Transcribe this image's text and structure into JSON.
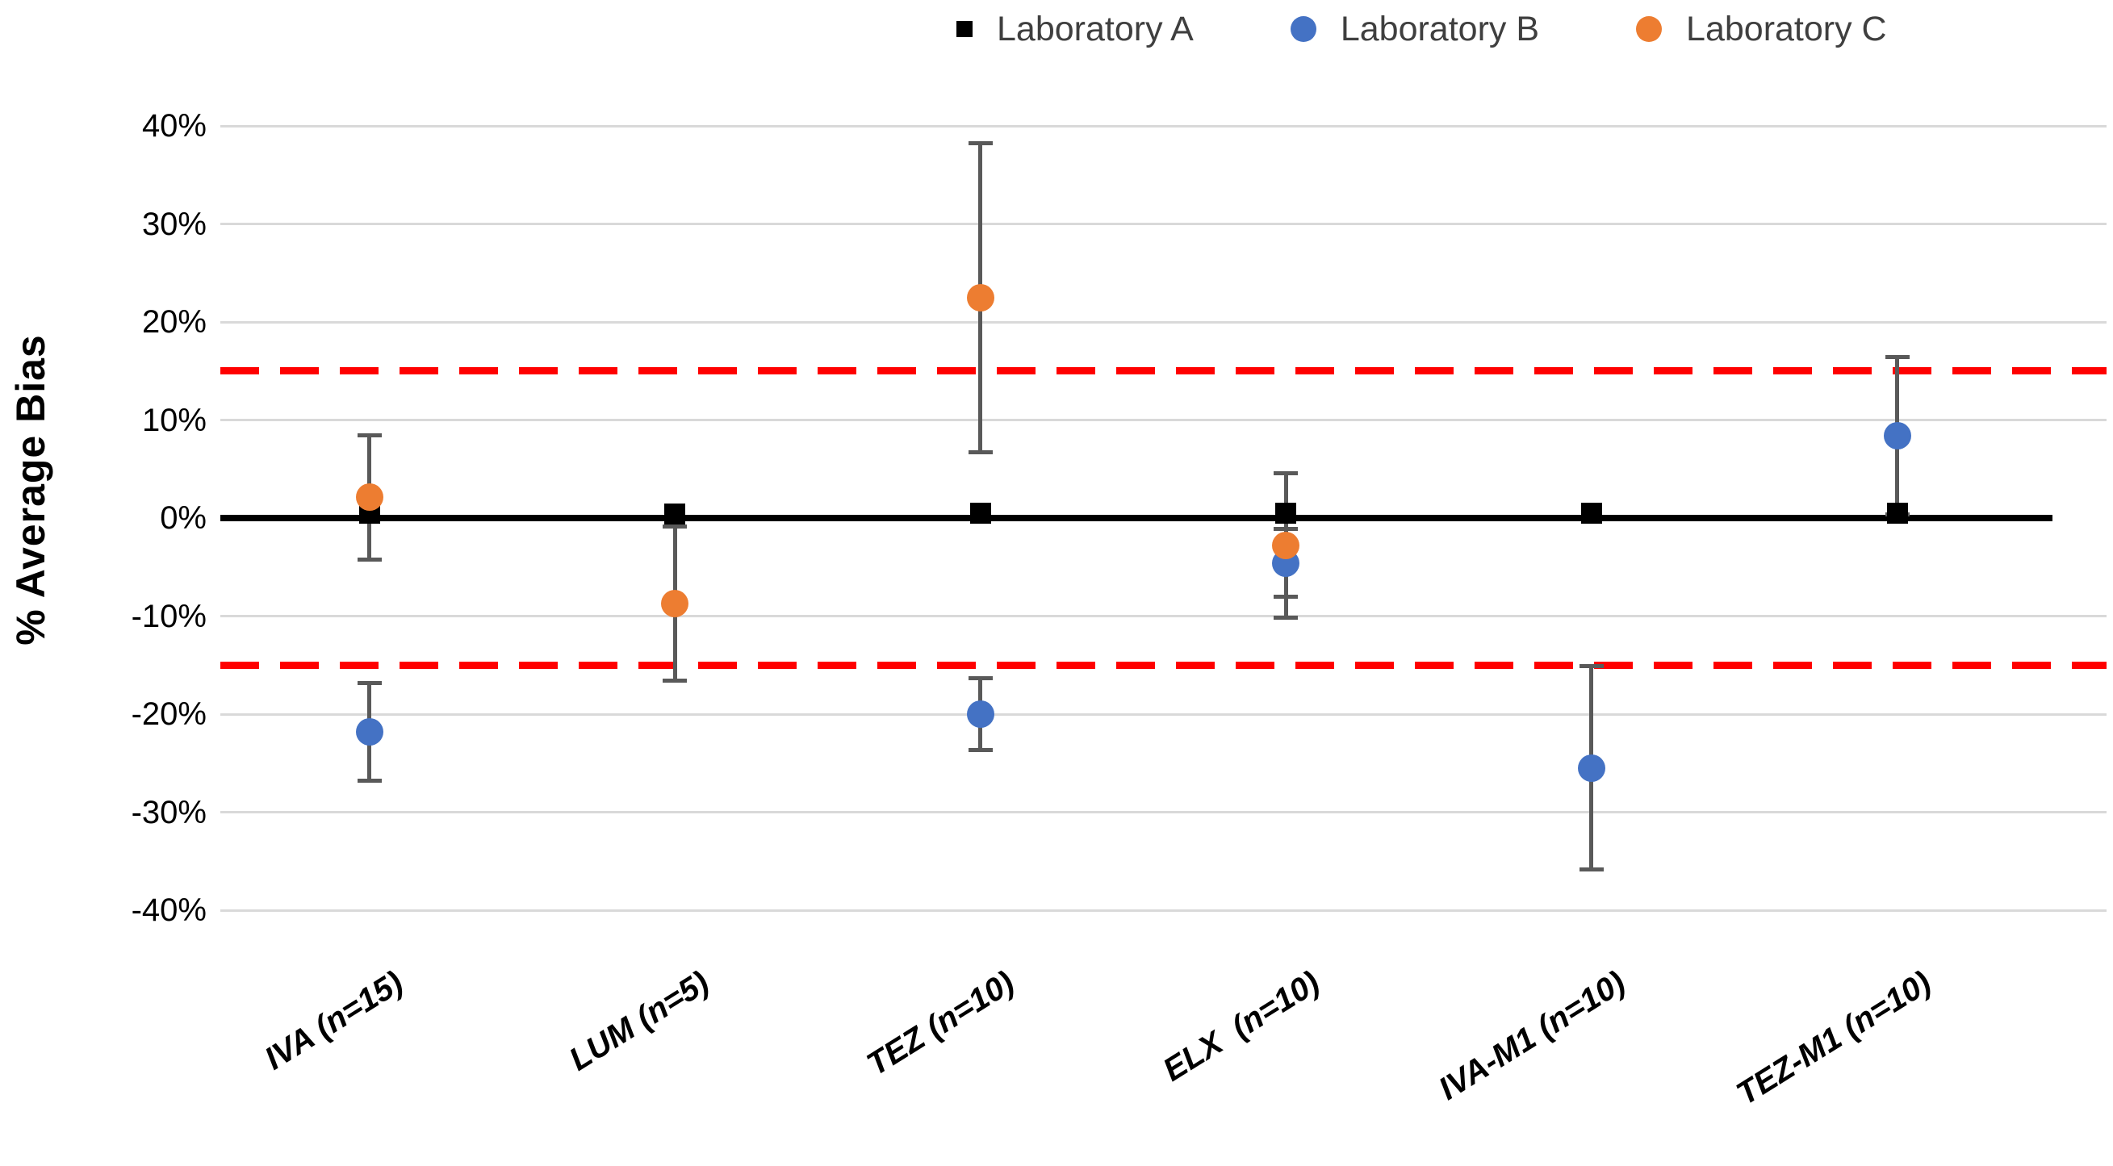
{
  "chart_data": {
    "type": "scatter",
    "title": "",
    "ylabel": "% Average Bias",
    "xlabel": "",
    "ylim": [
      -40,
      40
    ],
    "ytick_step": 10,
    "ytick_labels": [
      "40%",
      "30%",
      "20%",
      "10%",
      "0%",
      "-10%",
      "-20%",
      "-30%",
      "-40%"
    ],
    "grid": "horizontal",
    "legend_position": "top",
    "categories": [
      "IVA (n=15)",
      "LUM (n=5)",
      "TEZ (n=10)",
      "ELX  (n=10)",
      "IVA-M1 (n=10)",
      "TEZ-M1 (n=10)"
    ],
    "series": [
      {
        "name": "Laboratory A",
        "marker": "square",
        "color": "#000000",
        "values": [
          0.5,
          0.4,
          0.5,
          0.5,
          0.5,
          0.5
        ],
        "error_plus_minus": [
          null,
          null,
          null,
          null,
          null,
          null
        ]
      },
      {
        "name": "Laboratory B",
        "marker": "circle",
        "color": "#4472C4",
        "values": [
          -21.8,
          null,
          -20.0,
          -4.6,
          -25.5,
          8.4
        ],
        "error_plus_minus": [
          5.0,
          null,
          3.7,
          3.5,
          10.4,
          8.1
        ]
      },
      {
        "name": "Laboratory C",
        "marker": "circle",
        "color": "#ED7D31",
        "values": [
          2.1,
          -8.7,
          22.5,
          -2.8,
          null,
          null
        ],
        "error_plus_minus": [
          6.4,
          7.9,
          15.8,
          7.4,
          null,
          null
        ]
      }
    ],
    "reference_lines": {
      "zero_line_value": 0,
      "upper_spec_value": 15,
      "lower_spec_value": -15
    },
    "colors": {
      "spec_line": "#FF0000",
      "zero_line": "#000000",
      "gridline": "#D9D9D9",
      "error_bar": "#595959",
      "legend_text": "#3F3F3F"
    }
  }
}
